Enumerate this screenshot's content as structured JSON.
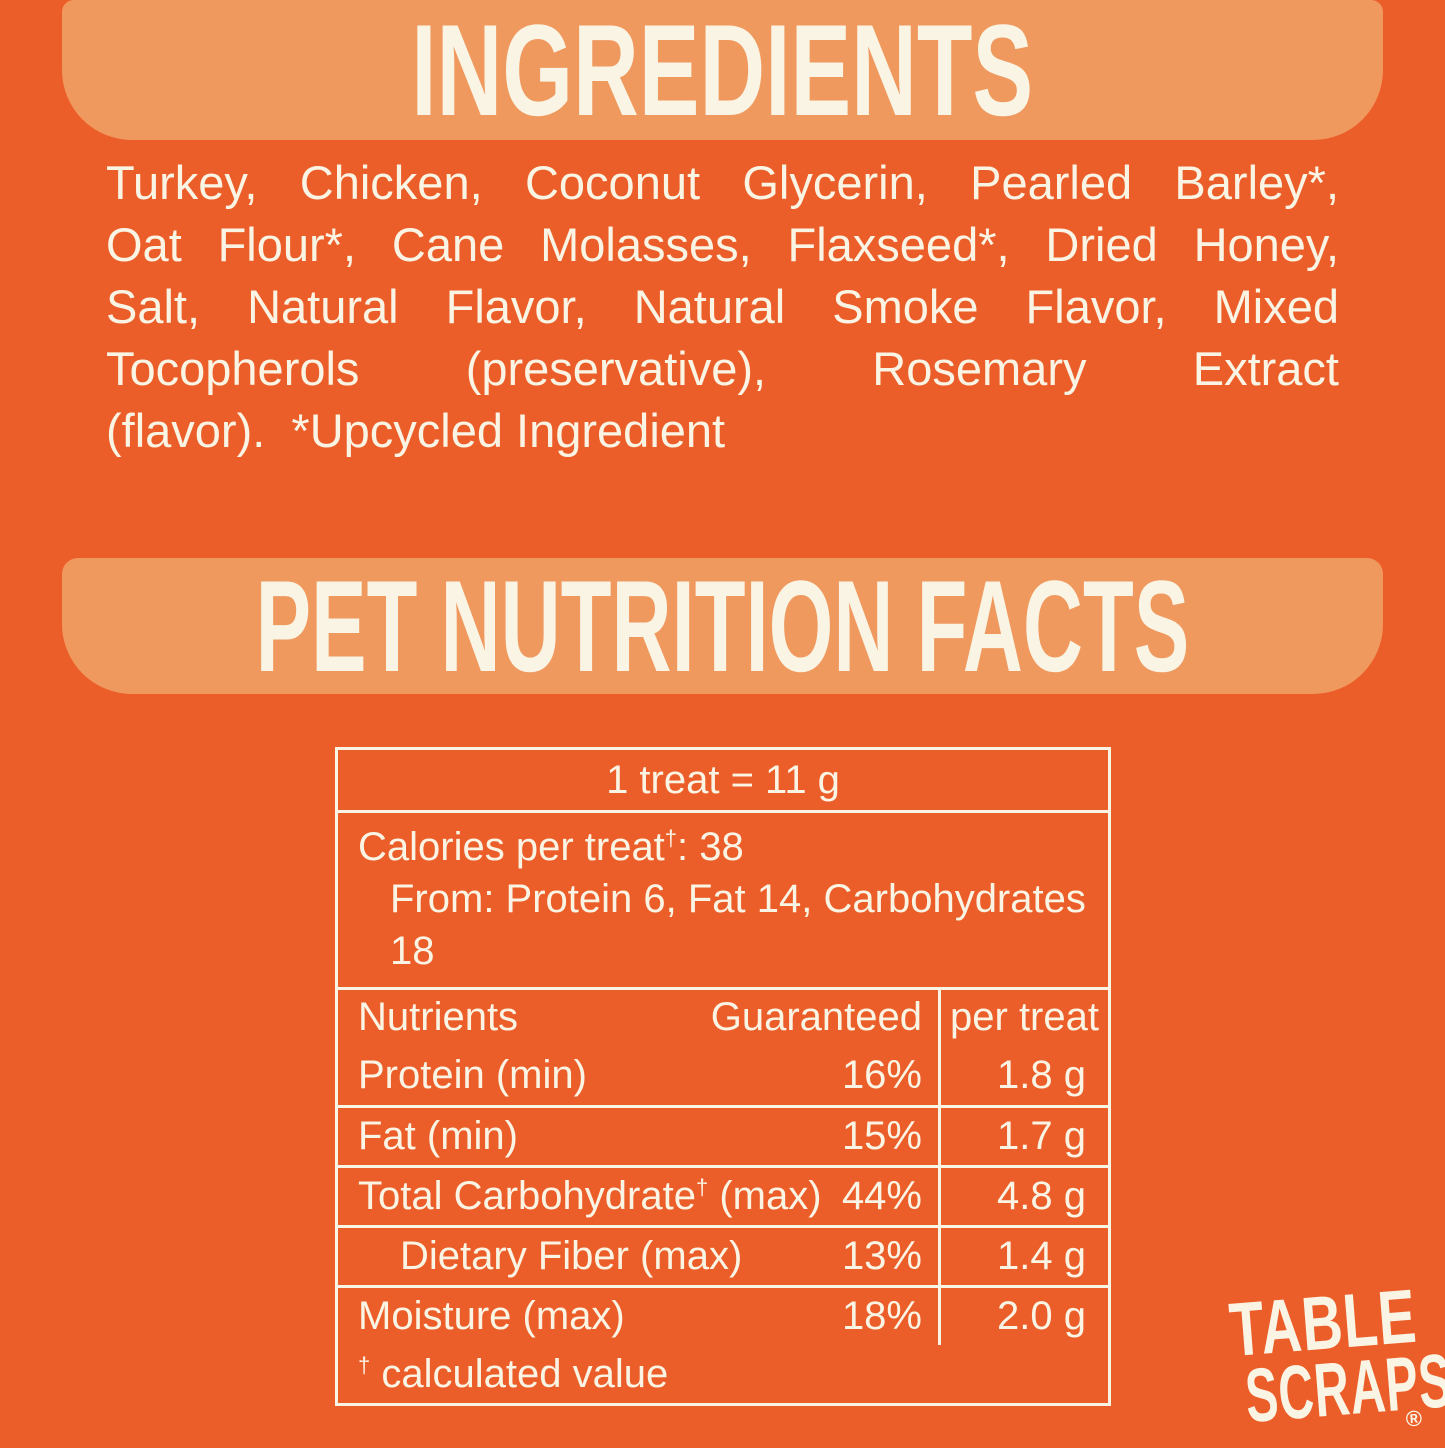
{
  "colors": {
    "background": "#EC5E29",
    "panel": "#F0995F",
    "text": "#FAF4E4"
  },
  "ingredients": {
    "title": "INGREDIENTS",
    "lines": [
      "Turkey, Chicken, Coconut Glycerin, Pearled Barley*,",
      "Oat Flour*, Cane Molasses, Flaxseed*, Dried Honey,",
      "Salt, Natural Flavor, Natural Smoke Flavor, Mixed",
      "Tocopherols (preservative), Rosemary Extract",
      "(flavor).  *Upcycled Ingredient"
    ]
  },
  "nutrition": {
    "title": "PET NUTRITION FACTS",
    "serving": "1 treat = 11 g",
    "calories": {
      "prefix": "Calories per treat",
      "dagger": "†",
      "value": ": 38",
      "from_line": "From: Protein 6, Fat 14, Carbohydrates 18"
    },
    "table": {
      "headers": {
        "nutrients": "Nutrients",
        "guaranteed": "Guaranteed",
        "per_treat": "per treat"
      },
      "rows": [
        {
          "label": "Protein (min)",
          "dagger": "",
          "label_suffix": "",
          "indent": false,
          "guaranteed": "16%",
          "per_treat": "1.8 g"
        },
        {
          "label": "Fat (min)",
          "dagger": "",
          "label_suffix": "",
          "indent": false,
          "guaranteed": "15%",
          "per_treat": "1.7 g"
        },
        {
          "label": "Total Carbohydrate",
          "dagger": "†",
          "label_suffix": " (max)",
          "indent": false,
          "guaranteed": "44%",
          "per_treat": "4.8 g"
        },
        {
          "label": "Dietary Fiber (max)",
          "dagger": "",
          "label_suffix": "",
          "indent": true,
          "guaranteed": "13%",
          "per_treat": "1.4 g"
        },
        {
          "label": "Moisture (max)",
          "dagger": "",
          "label_suffix": "",
          "indent": false,
          "guaranteed": "18%",
          "per_treat": "2.0 g"
        }
      ],
      "footnote": {
        "dagger": "†",
        "text": " calculated value"
      }
    }
  },
  "logo": {
    "line1": "TABLE",
    "line2": "SCRAPS",
    "mark": "®"
  }
}
